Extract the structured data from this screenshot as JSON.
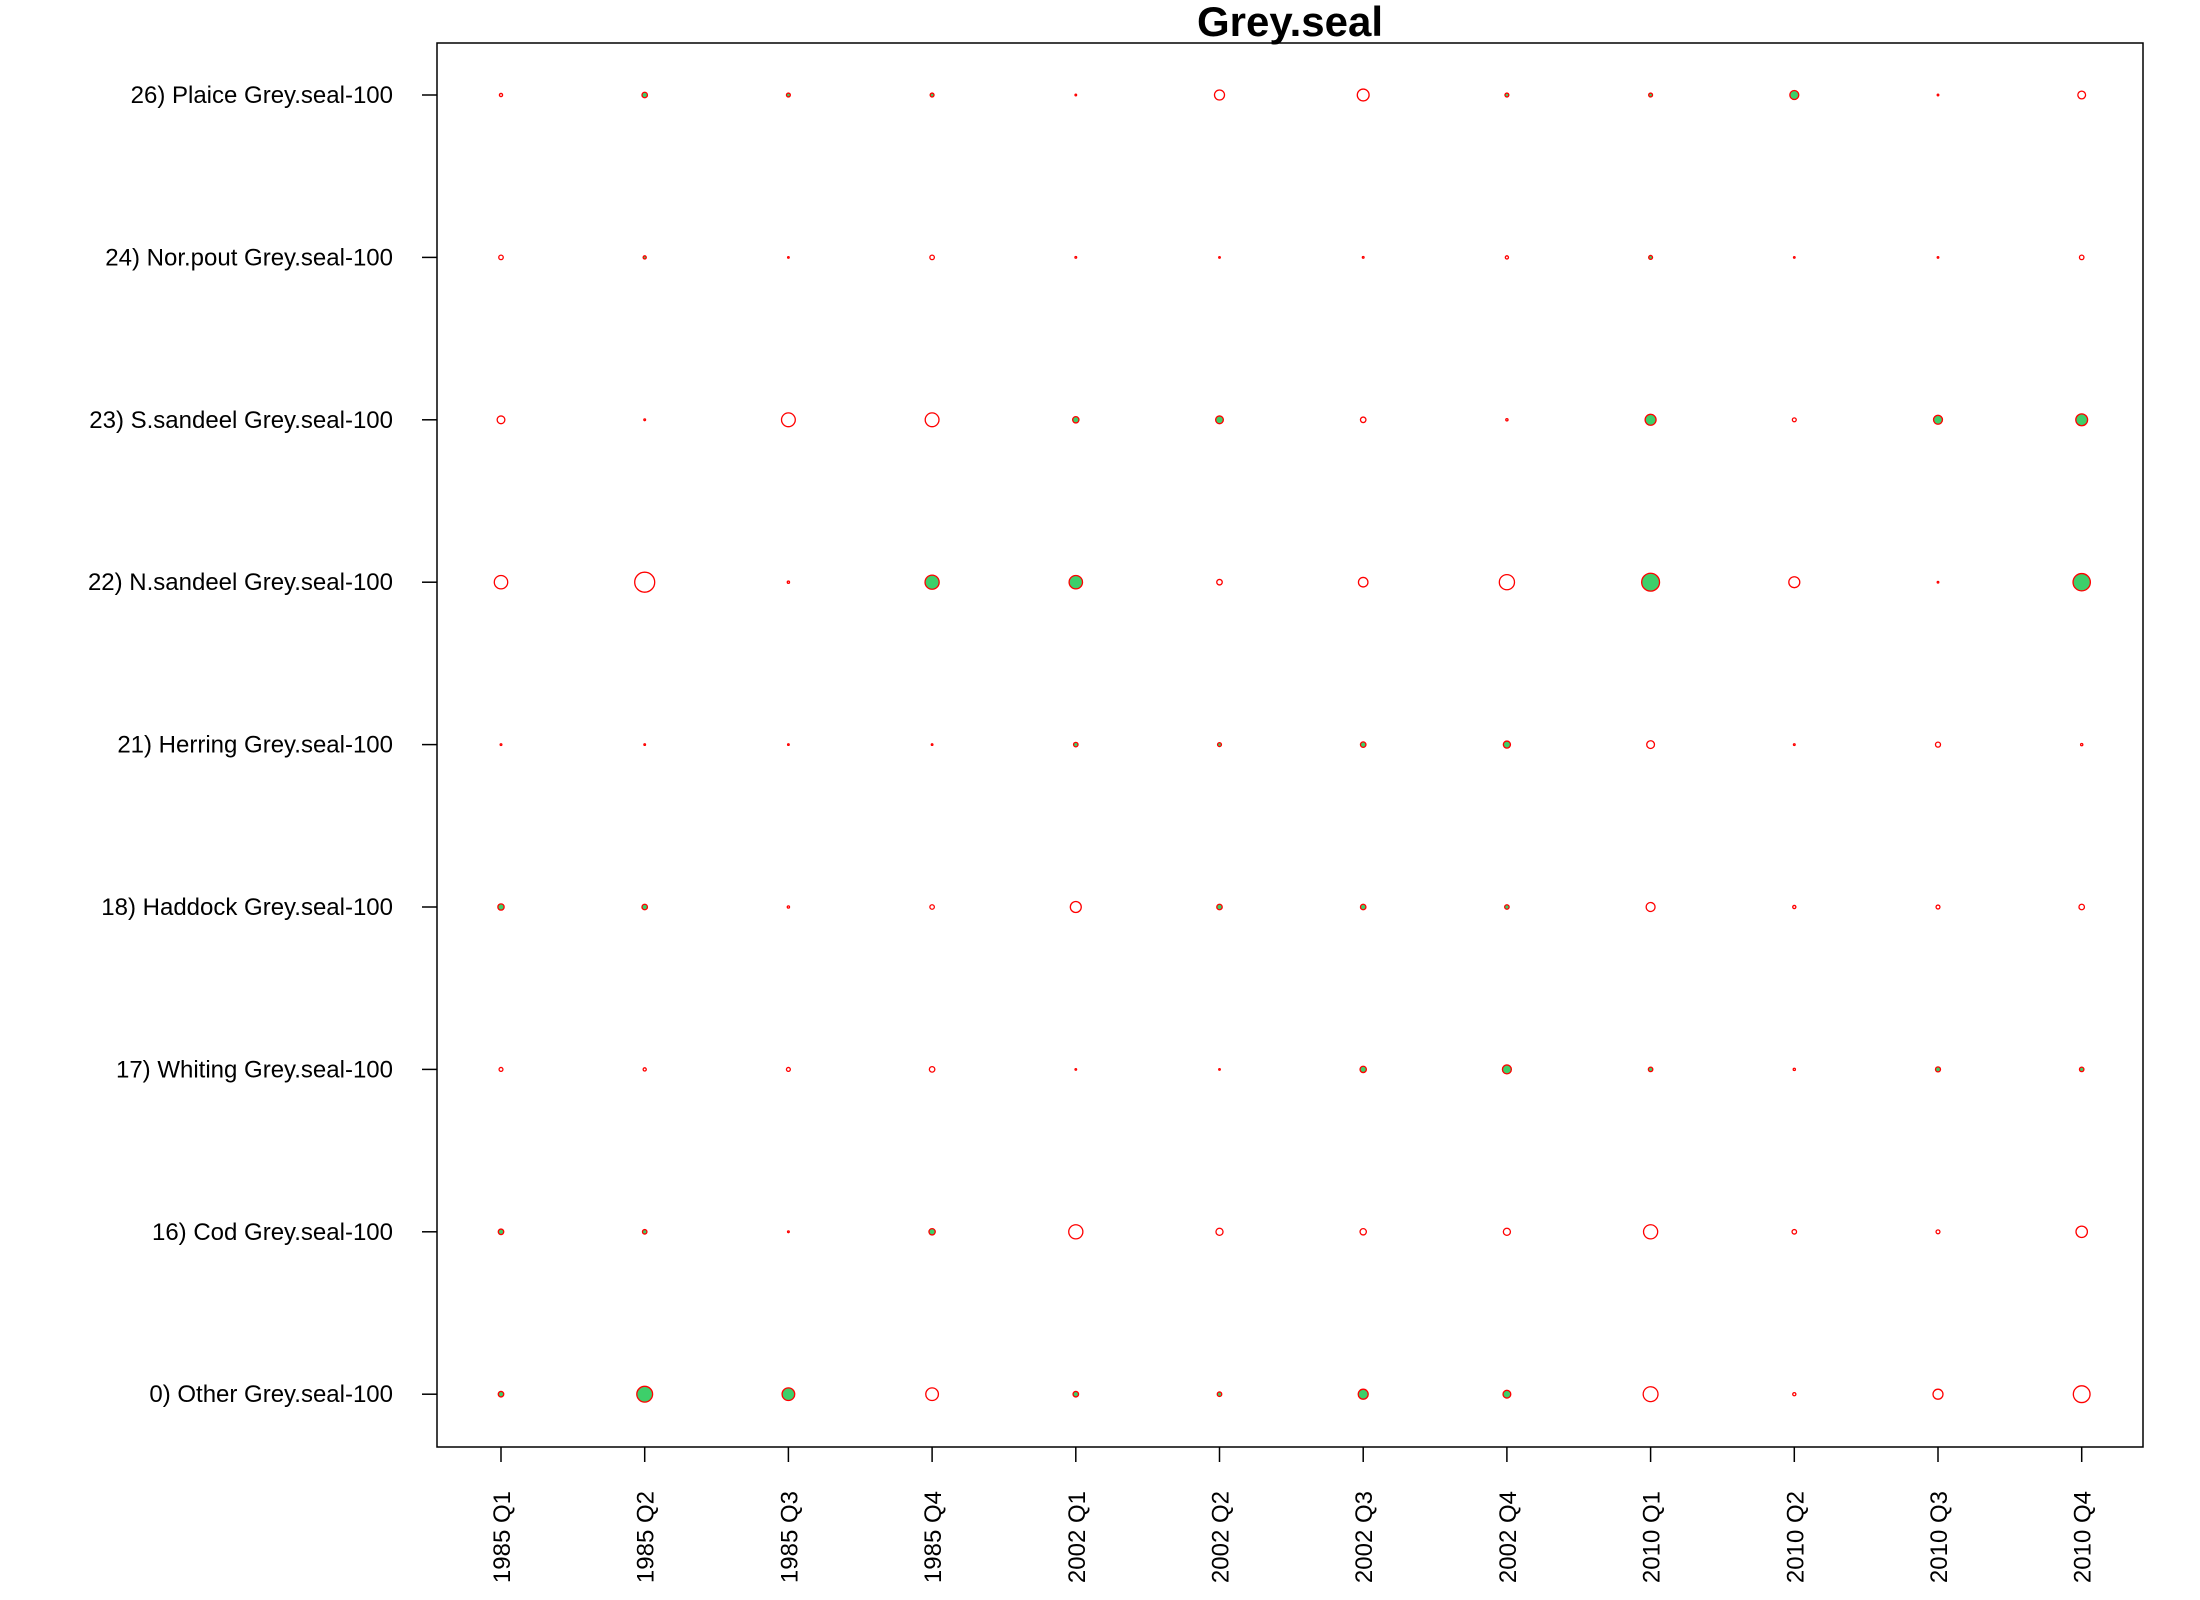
{
  "chart_data": {
    "type": "scatter",
    "title": "Grey.seal",
    "xlabel": "",
    "ylabel": "",
    "x_categories": [
      "1985 Q1",
      "1985 Q2",
      "1985 Q3",
      "1985 Q4",
      "2002 Q1",
      "2002 Q2",
      "2002 Q3",
      "2002 Q4",
      "2010 Q1",
      "2010 Q2",
      "2010 Q3",
      "2010 Q4"
    ],
    "y_categories": [
      "0) Other Grey.seal-100",
      "16) Cod Grey.seal-100",
      "17) Whiting Grey.seal-100",
      "18) Haddock Grey.seal-100",
      "21) Herring Grey.seal-100",
      "22) N.sandeel Grey.seal-100",
      "23) S.sandeel Grey.seal-100",
      "24) Nor.pout Grey.seal-100",
      "26) Plaice Grey.seal-100"
    ],
    "size_encoding": "circle area proportional to absolute value",
    "sign_encoding": {
      "positive": "filled green circle",
      "negative": "open red circle"
    },
    "colors": {
      "positive_fill": "#3dcf6a",
      "outline": "#ff0000",
      "axis": "#000000"
    },
    "series": [
      {
        "y": "0) Other Grey.seal-100",
        "values": [
          0.3,
          2.5,
          1.6,
          -1.6,
          0.3,
          0.2,
          1.0,
          0.6,
          -2.2,
          -0.1,
          -1.0,
          -2.8
        ]
      },
      {
        "y": "16) Cod Grey.seal-100",
        "values": [
          0.3,
          0.2,
          -0.03,
          0.4,
          -2.0,
          -0.5,
          -0.4,
          -0.5,
          -2.0,
          -0.2,
          -0.15,
          -1.3
        ]
      },
      {
        "y": "17) Whiting Grey.seal-100",
        "values": [
          -0.15,
          -0.1,
          -0.15,
          -0.3,
          -0.02,
          -0.02,
          0.4,
          0.8,
          0.2,
          -0.05,
          0.25,
          0.2
        ]
      },
      {
        "y": "18) Haddock Grey.seal-100",
        "values": [
          0.4,
          0.3,
          -0.05,
          -0.2,
          -1.2,
          0.3,
          0.3,
          0.2,
          -0.8,
          -0.1,
          -0.15,
          -0.3
        ]
      },
      {
        "y": "21) Herring Grey.seal-100",
        "values": [
          -0.03,
          0.0,
          0.0,
          -0.02,
          0.2,
          0.15,
          0.3,
          0.5,
          -0.6,
          -0.03,
          -0.25,
          -0.05
        ]
      },
      {
        "y": "22) N.sandeel Grey.seal-100",
        "values": [
          -1.8,
          -4.0,
          -0.05,
          2.0,
          1.8,
          -0.3,
          -0.9,
          -2.3,
          3.2,
          -1.2,
          -0.02,
          3.0
        ]
      },
      {
        "y": "23) S.sandeel Grey.seal-100",
        "values": [
          -0.6,
          -0.03,
          -1.9,
          -1.9,
          0.4,
          0.6,
          -0.3,
          -0.05,
          1.2,
          -0.15,
          0.8,
          1.4
        ]
      },
      {
        "y": "24) Nor.pout Grey.seal-100",
        "values": [
          -0.2,
          0.1,
          0.0,
          -0.2,
          -0.03,
          -0.02,
          -0.03,
          -0.1,
          0.15,
          -0.02,
          -0.02,
          -0.2
        ]
      },
      {
        "y": "26) Plaice Grey.seal-100",
        "values": [
          -0.1,
          0.3,
          0.15,
          0.15,
          -0.02,
          -1.0,
          -1.4,
          0.15,
          0.15,
          0.8,
          -0.02,
          -0.6
        ]
      }
    ]
  }
}
